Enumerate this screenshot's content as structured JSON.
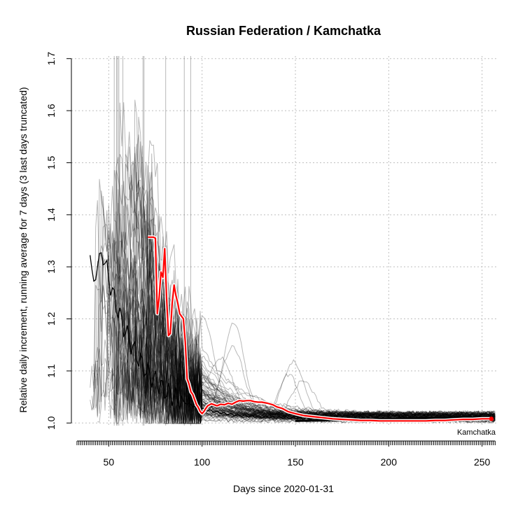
{
  "chart_data": {
    "type": "line",
    "title": "Russian Federation / Kamchatka",
    "xlabel": "Days since 2020-01-31",
    "ylabel": "Relative daily increment, running average for 7 days (3 last days truncated)",
    "xlim": [
      30,
      258
    ],
    "ylim": [
      0.995,
      1.705
    ],
    "xticks": [
      50,
      100,
      150,
      200,
      250
    ],
    "yticks": [
      1.0,
      1.1,
      1.2,
      1.3,
      1.4,
      1.5,
      1.6,
      1.7
    ],
    "grid": true,
    "highlight_label": "Kamchatka",
    "highlight_color": "#ff0000",
    "highlight_series": {
      "name": "Kamchatka",
      "x": [
        71,
        74,
        75,
        76,
        77,
        78,
        79,
        80,
        81,
        82,
        83,
        84,
        85,
        86,
        87,
        88,
        89,
        90,
        91,
        92,
        93,
        94,
        95,
        96,
        97,
        98,
        99,
        100,
        101,
        102,
        103,
        105,
        108,
        110,
        112,
        114,
        116,
        118,
        120,
        122,
        124,
        126,
        128,
        130,
        132,
        135,
        138,
        140,
        143,
        146,
        150,
        155,
        160,
        165,
        170,
        175,
        180,
        185,
        190,
        195,
        200,
        205,
        210,
        215,
        220,
        225,
        230,
        235,
        240,
        245,
        250,
        255
      ],
      "y": [
        1.357,
        1.357,
        1.355,
        1.21,
        1.24,
        1.29,
        1.28,
        1.335,
        1.24,
        1.168,
        1.172,
        1.23,
        1.265,
        1.245,
        1.23,
        1.21,
        1.205,
        1.2,
        1.155,
        1.085,
        1.075,
        1.06,
        1.055,
        1.045,
        1.035,
        1.03,
        1.022,
        1.018,
        1.022,
        1.028,
        1.033,
        1.037,
        1.033,
        1.036,
        1.035,
        1.038,
        1.036,
        1.04,
        1.043,
        1.042,
        1.043,
        1.043,
        1.041,
        1.04,
        1.04,
        1.038,
        1.035,
        1.031,
        1.028,
        1.022,
        1.018,
        1.014,
        1.012,
        1.01,
        1.008,
        1.007,
        1.006,
        1.005,
        1.005,
        1.004,
        1.004,
        1.004,
        1.004,
        1.004,
        1.004,
        1.005,
        1.005,
        1.006,
        1.007,
        1.007,
        1.008,
        1.008
      ]
    },
    "background_series_description": "~80 other regions of the Russian Federation (unnamed, grey), plus one solid black region line"
  }
}
